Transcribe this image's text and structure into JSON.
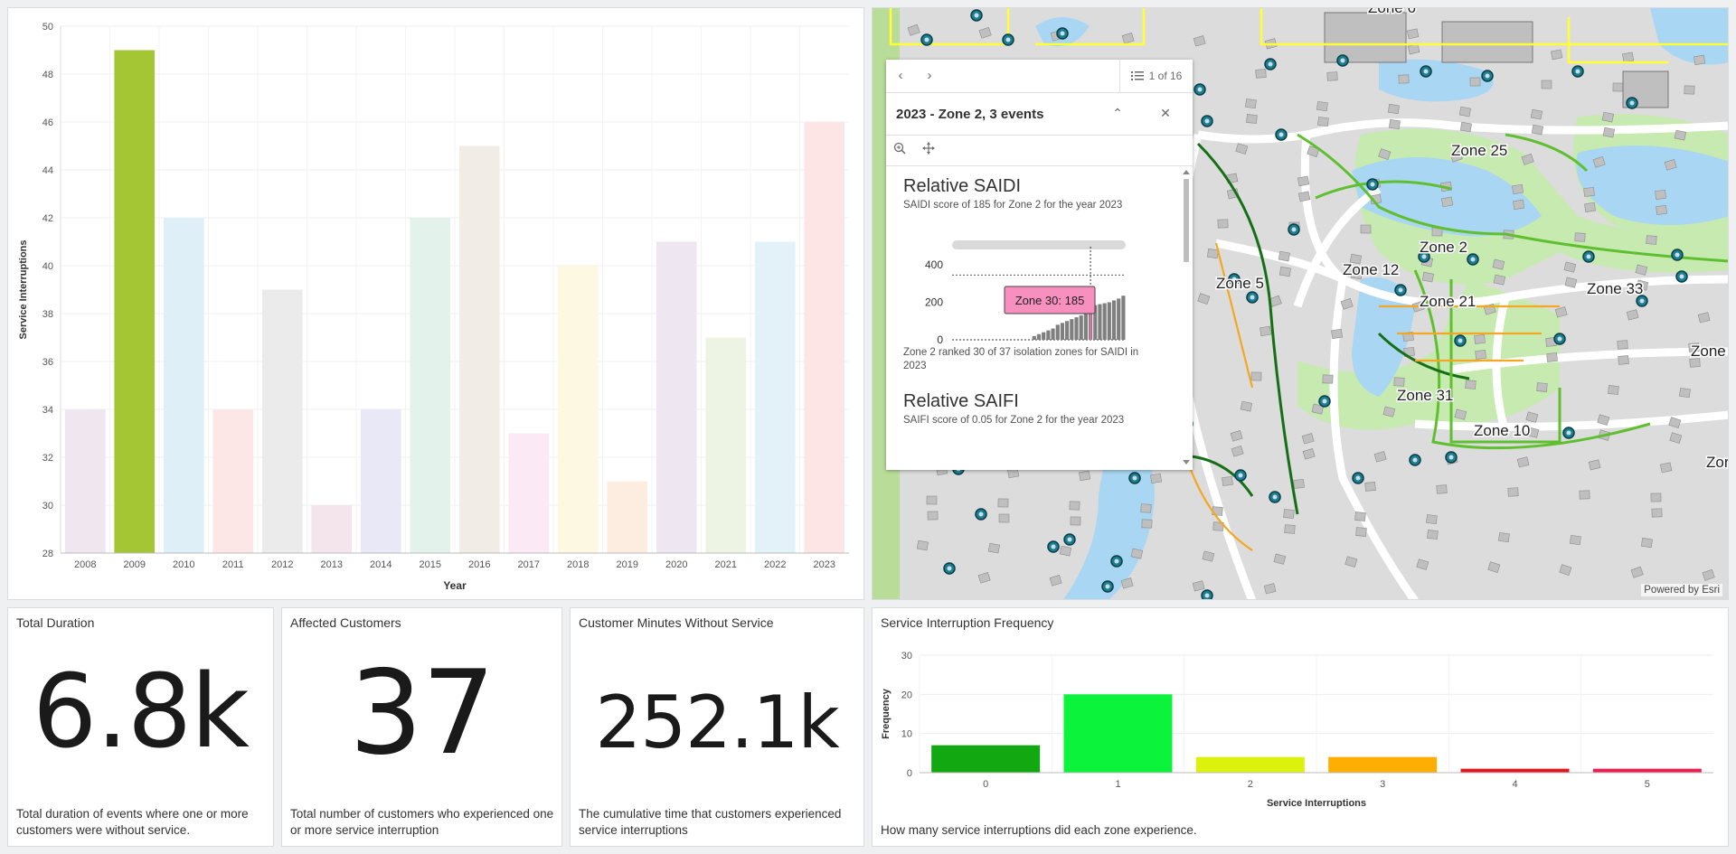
{
  "year_chart": {
    "ylabel": "Service Interruptions",
    "xlabel": "Year"
  },
  "chart_data": [
    {
      "type": "bar",
      "categories": [
        "2008",
        "2009",
        "2010",
        "2011",
        "2012",
        "2013",
        "2014",
        "2015",
        "2016",
        "2017",
        "2018",
        "2019",
        "2020",
        "2021",
        "2022",
        "2023"
      ],
      "values": [
        34,
        49,
        42,
        34,
        39,
        30,
        34,
        42,
        45,
        33,
        40,
        31,
        41,
        37,
        41,
        46
      ],
      "colors": [
        "#efe6f0",
        "#a4c634",
        "#dfeff7",
        "#fce6e6",
        "#ebebeb",
        "#f4e4ec",
        "#e8e8f7",
        "#e3f3ec",
        "#f2ece6",
        "#fbe9f6",
        "#fcf8e2",
        "#fdede1",
        "#eee7f1",
        "#eef4e3",
        "#e3f1f8",
        "#fde5e5"
      ],
      "xlabel": "Year",
      "ylabel": "Service Interruptions",
      "ylim": [
        28,
        50
      ],
      "yticks": [
        28,
        30,
        32,
        34,
        36,
        38,
        40,
        42,
        44,
        46,
        48,
        50
      ],
      "highlight": "2009",
      "grid": true
    },
    {
      "type": "bar",
      "categories": [
        "0",
        "1",
        "2",
        "3",
        "4",
        "5"
      ],
      "values": [
        7,
        20,
        4,
        4,
        1,
        1
      ],
      "colors": [
        "#12a812",
        "#0cf33c",
        "#dcf20c",
        "#ffae00",
        "#e8141e",
        "#f01e50"
      ],
      "xlabel": "Service Interruptions",
      "ylabel": "Frequency",
      "ylim": [
        0,
        30
      ],
      "yticks": [
        0,
        10,
        20,
        30
      ],
      "grid": true
    },
    {
      "type": "bar",
      "title": "Relative SAIDI",
      "ylim": [
        0,
        400
      ],
      "yticks": [
        0,
        200,
        400
      ],
      "values": [
        0,
        0,
        0,
        0,
        0,
        0,
        0,
        0,
        0,
        0,
        0,
        0,
        0,
        0,
        0,
        0,
        0,
        20,
        30,
        40,
        50,
        60,
        80,
        90,
        100,
        110,
        120,
        130,
        140,
        150,
        185,
        190,
        195,
        200,
        210,
        220,
        235
      ],
      "highlight_label": "Zone 30: 185"
    }
  ],
  "kpis": [
    {
      "title": "Total Duration",
      "value": "6.8k",
      "desc": "Total duration of events where one or more customers were without service."
    },
    {
      "title": "Affected Customers",
      "value": "37",
      "desc": "Total number of customers who experienced one or more service interruption"
    },
    {
      "title": "Customer Minutes Without Service",
      "value": "252.1k",
      "desc": "The cumulative time that customers experienced service interruptions"
    }
  ],
  "freq_chart": {
    "title": "Service Interruption Frequency",
    "xlabel": "Service Interruptions",
    "ylabel": "Frequency",
    "desc": "How many service interruptions did each zone experience."
  },
  "map": {
    "powered_by": "Powered by Esri",
    "zone_labels": [
      "Zone 25",
      "Zone 2",
      "Zone 12",
      "Zone 5",
      "Zone 21",
      "Zone 33",
      "Zone 31",
      "Zone 10",
      "Zone",
      "Zor",
      "Zone 6"
    ]
  },
  "popup": {
    "count": "1 of 16",
    "title": "2023 - Zone 2, 3 events",
    "saidi_title": "Relative SAIDI",
    "saidi_sub": "SAIDI score of 185 for Zone 2 for the year 2023",
    "saidi_tooltip": "Zone 30: 185",
    "saidi_yticks": [
      "400",
      "200",
      "0"
    ],
    "saidi_note": "Zone 2 ranked 30 of 37 isolation zones for SAIDI in 2023",
    "saifi_title": "Relative SAIFI",
    "saifi_sub": "SAIFI score of 0.05 for Zone 2 for the year 2023"
  },
  "icons": {
    "prev": "chevron-left-icon",
    "next": "chevron-right-icon",
    "list": "list-icon",
    "collapse": "chevron-up-icon",
    "close": "close-icon",
    "zoom": "zoom-in-icon",
    "move": "move-icon"
  }
}
